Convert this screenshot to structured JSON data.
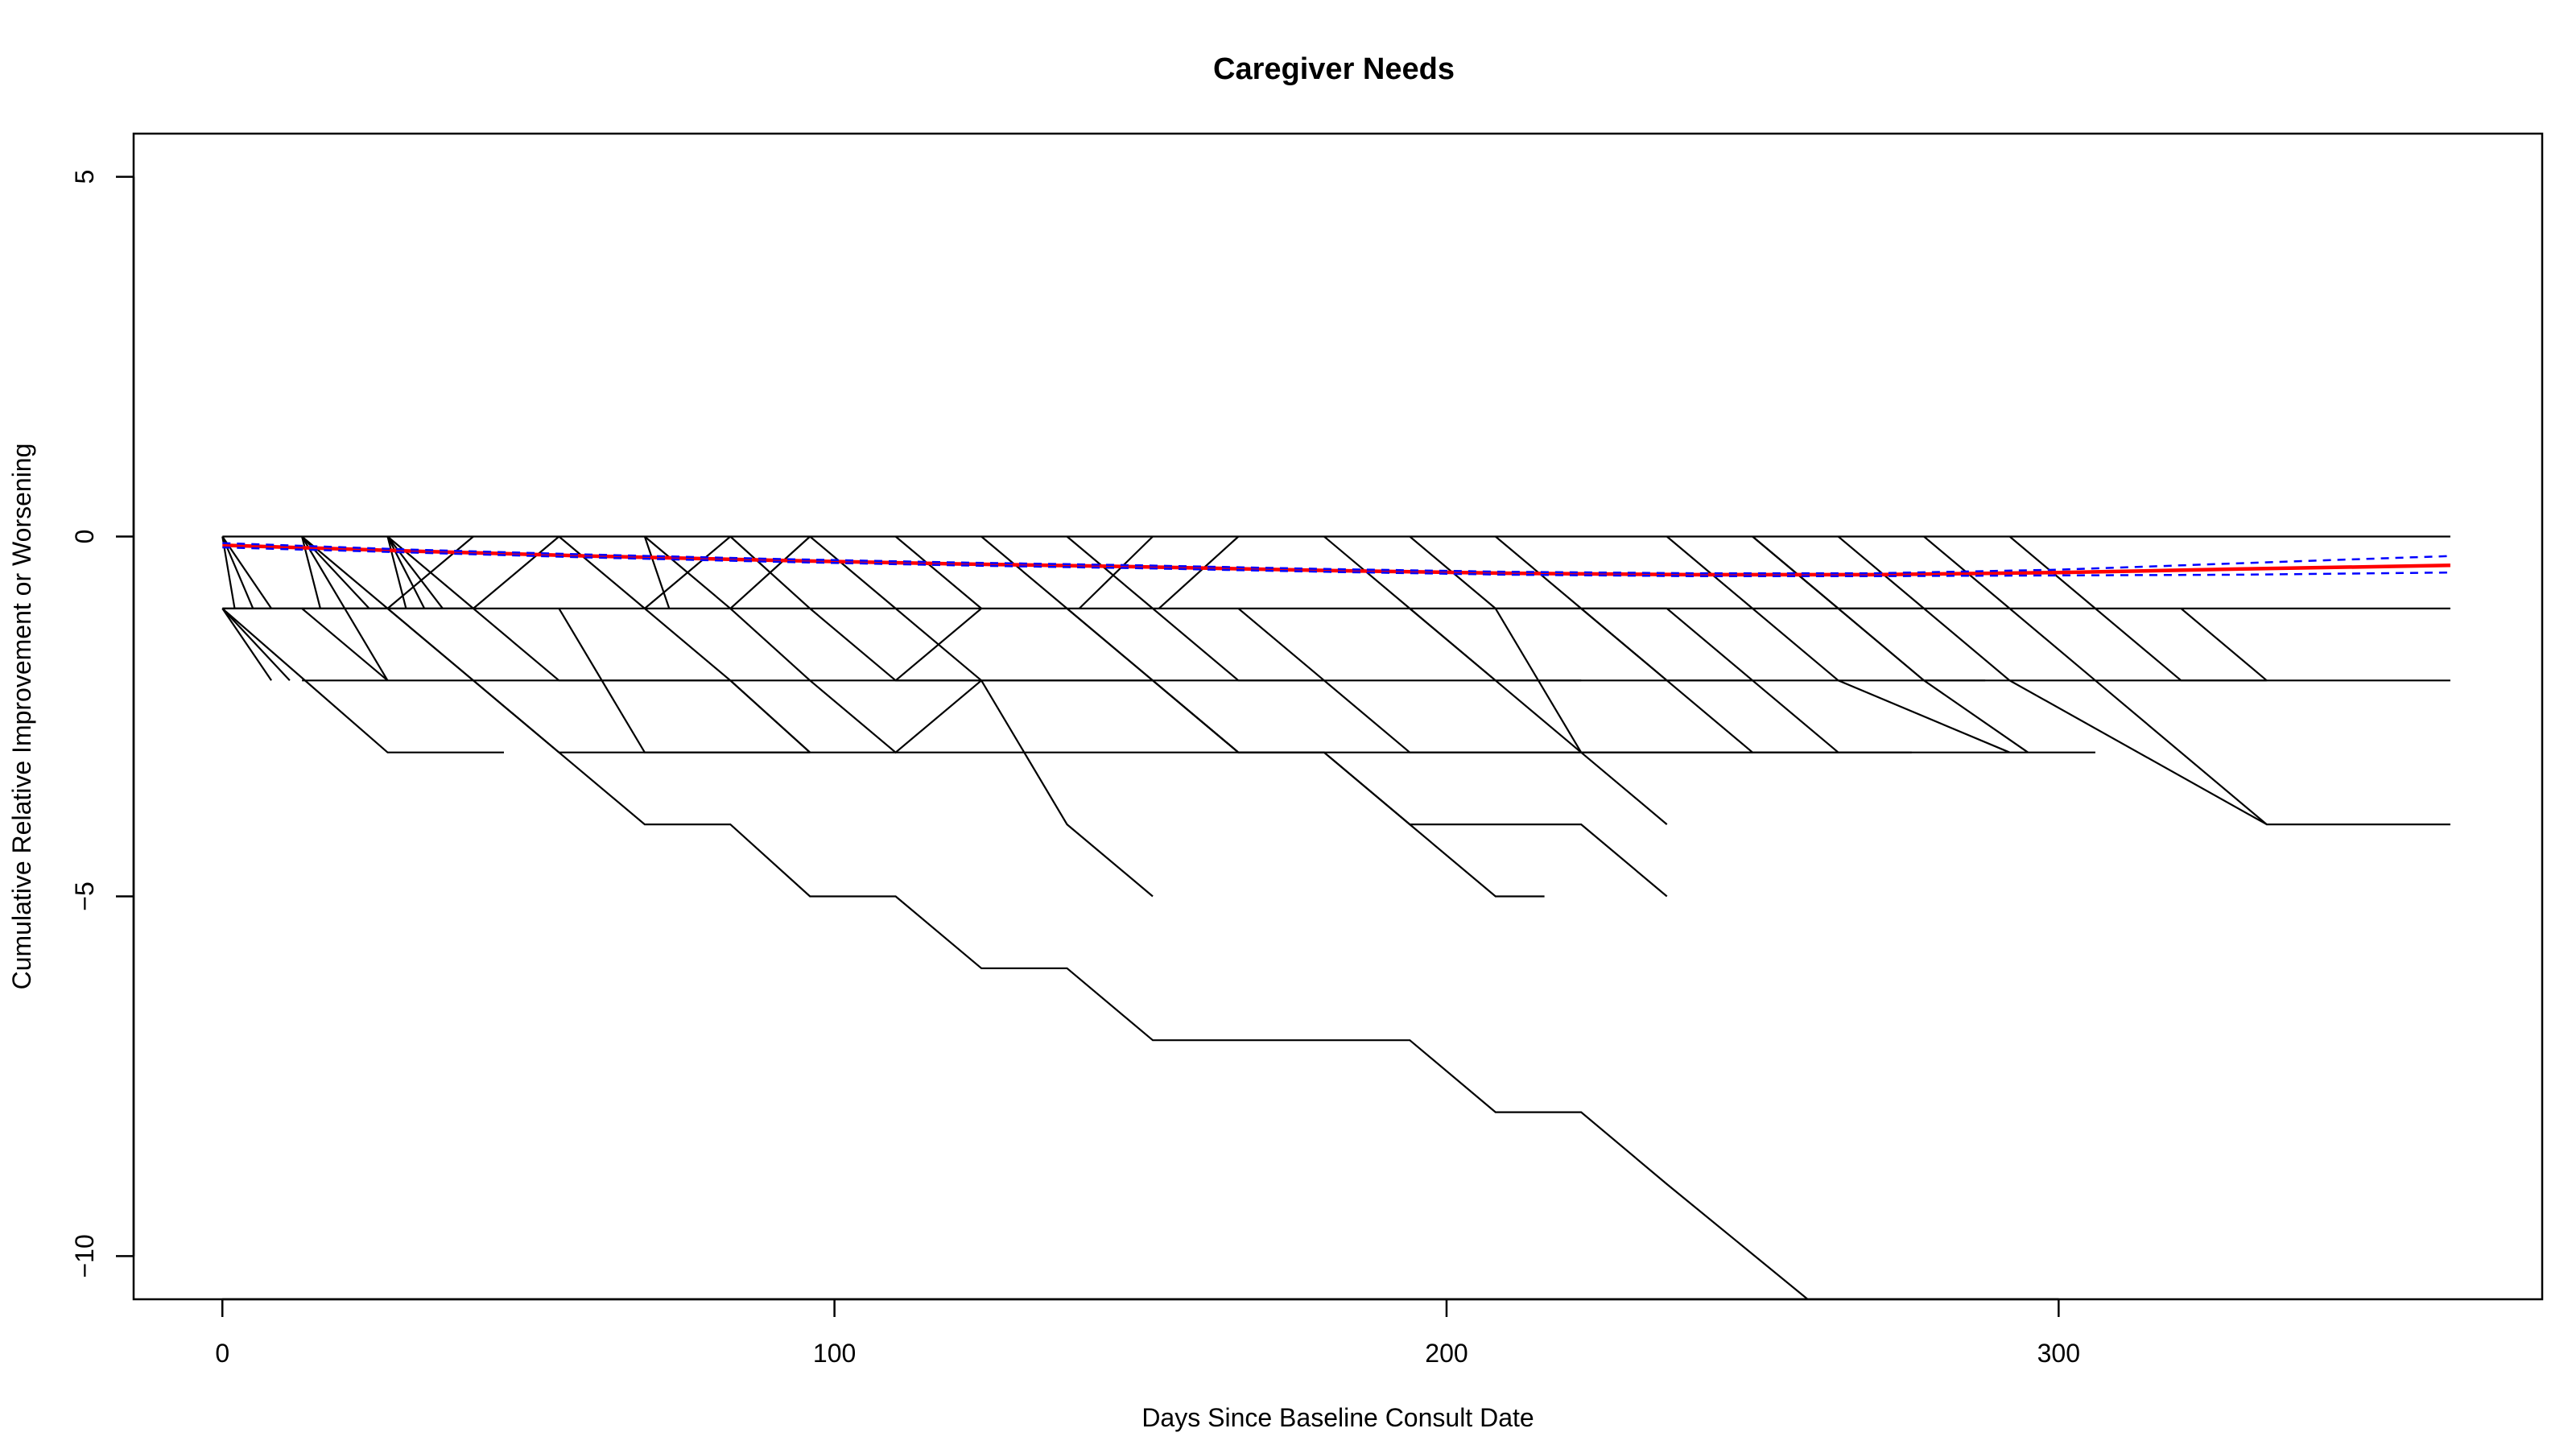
{
  "chart_data": {
    "type": "line",
    "title": "Caregiver Needs",
    "xlabel": "Days Since Baseline Consult Date",
    "ylabel": "Cumulative Relative Improvement or Worsening",
    "xlim": [
      -14.5,
      379
    ],
    "ylim": [
      -10.6,
      5.6
    ],
    "xticks": [
      0,
      100,
      200,
      300
    ],
    "yticks": [
      5,
      0,
      -5,
      -10
    ],
    "grid": false,
    "legend": "none",
    "colors": {
      "trajectory": "#000000",
      "fit": "#ff0000",
      "ci": "#0000ff"
    },
    "trajectories": [
      {
        "x": [
          0,
          364
        ],
        "y": [
          0,
          0
        ]
      },
      {
        "x": [
          0,
          364
        ],
        "y": [
          -1,
          -1
        ]
      },
      {
        "x": [
          13,
          364
        ],
        "y": [
          -2,
          -2
        ]
      },
      {
        "x": [
          0,
          27,
          46
        ],
        "y": [
          -1,
          -3,
          -3
        ]
      },
      {
        "x": [
          0,
          8
        ],
        "y": [
          -1,
          -2
        ]
      },
      {
        "x": [
          0,
          11
        ],
        "y": [
          -1,
          -2
        ]
      },
      {
        "x": [
          0,
          2,
          4
        ],
        "y": [
          0,
          -1,
          -1
        ]
      },
      {
        "x": [
          0,
          5
        ],
        "y": [
          0,
          -1
        ]
      },
      {
        "x": [
          0,
          8
        ],
        "y": [
          0,
          -1
        ]
      },
      {
        "x": [
          0,
          13,
          27
        ],
        "y": [
          -1,
          -1,
          -2
        ]
      },
      {
        "x": [
          13,
          16
        ],
        "y": [
          0,
          -1
        ]
      },
      {
        "x": [
          13,
          20,
          27
        ],
        "y": [
          0,
          -1,
          -2
        ]
      },
      {
        "x": [
          13,
          27
        ],
        "y": [
          0,
          -1
        ]
      },
      {
        "x": [
          13,
          24
        ],
        "y": [
          0,
          -1
        ]
      },
      {
        "x": [
          27,
          30
        ],
        "y": [
          0,
          -1
        ]
      },
      {
        "x": [
          27,
          33
        ],
        "y": [
          0,
          -1
        ]
      },
      {
        "x": [
          27,
          36
        ],
        "y": [
          0,
          -1
        ]
      },
      {
        "x": [
          27,
          41
        ],
        "y": [
          0,
          -1
        ]
      },
      {
        "x": [
          13,
          27,
          41,
          55,
          69,
          83,
          96,
          110,
          124,
          138,
          152,
          166,
          180,
          194,
          208,
          222,
          236,
          259
        ],
        "y": [
          -1,
          -1,
          -2,
          -3,
          -4,
          -4,
          -5,
          -5,
          -6,
          -6,
          -7,
          -7,
          -7,
          -7,
          -8,
          -8,
          -9,
          -10.6
        ]
      },
      {
        "x": [
          27,
          41,
          55,
          69,
          96
        ],
        "y": [
          -1,
          -2,
          -3,
          -3,
          -3
        ]
      },
      {
        "x": [
          41,
          55,
          69,
          83,
          96
        ],
        "y": [
          -1,
          -2,
          -2,
          -2,
          -3
        ]
      },
      {
        "x": [
          27,
          41
        ],
        "y": [
          -1,
          -1
        ]
      },
      {
        "x": [
          41,
          27
        ],
        "y": [
          0,
          -1
        ]
      },
      {
        "x": [
          55,
          41
        ],
        "y": [
          0,
          -1
        ]
      },
      {
        "x": [
          55,
          69,
          83,
          96
        ],
        "y": [
          0,
          -1,
          -2,
          -3
        ]
      },
      {
        "x": [
          55,
          69,
          276
        ],
        "y": [
          -1,
          -3,
          -3
        ]
      },
      {
        "x": [
          69,
          83,
          96,
          110,
          124
        ],
        "y": [
          0,
          -1,
          -2,
          -3,
          -2
        ]
      },
      {
        "x": [
          69,
          73
        ],
        "y": [
          0,
          -1
        ]
      },
      {
        "x": [
          83,
          69
        ],
        "y": [
          0,
          -1
        ]
      },
      {
        "x": [
          83,
          96,
          110,
          124,
          138,
          152
        ],
        "y": [
          0,
          -1,
          -2,
          -2,
          -4,
          -5
        ]
      },
      {
        "x": [
          96,
          83
        ],
        "y": [
          0,
          -1
        ]
      },
      {
        "x": [
          96,
          110,
          124,
          138,
          152,
          166,
          180
        ],
        "y": [
          0,
          -1,
          -2,
          -2,
          -2,
          -3,
          -3
        ]
      },
      {
        "x": [
          110,
          124
        ],
        "y": [
          0,
          -1
        ]
      },
      {
        "x": [
          124,
          138,
          152,
          166,
          180,
          194,
          208,
          216
        ],
        "y": [
          0,
          -1,
          -2,
          -3,
          -3,
          -4,
          -5,
          -5
        ]
      },
      {
        "x": [
          124,
          110
        ],
        "y": [
          -1,
          -2
        ]
      },
      {
        "x": [
          138,
          152
        ],
        "y": [
          0,
          -1
        ]
      },
      {
        "x": [
          138,
          152,
          166,
          180,
          194,
          208,
          222,
          236
        ],
        "y": [
          -1,
          -2,
          -3,
          -3,
          -4,
          -4,
          -4,
          -5
        ]
      },
      {
        "x": [
          152,
          140
        ],
        "y": [
          0,
          -1
        ]
      },
      {
        "x": [
          152,
          166,
          180
        ],
        "y": [
          -1,
          -2,
          -2
        ]
      },
      {
        "x": [
          166,
          153
        ],
        "y": [
          0,
          -1
        ]
      },
      {
        "x": [
          166,
          180,
          194,
          208,
          222,
          236
        ],
        "y": [
          -1,
          -2,
          -3,
          -3,
          -3,
          -4
        ]
      },
      {
        "x": [
          180,
          194,
          208,
          222
        ],
        "y": [
          0,
          -1,
          -2,
          -2
        ]
      },
      {
        "x": [
          194,
          208,
          222,
          236
        ],
        "y": [
          0,
          -1,
          -1,
          -1
        ]
      },
      {
        "x": [
          194,
          208,
          222,
          236,
          250
        ],
        "y": [
          -1,
          -2,
          -3,
          -3,
          -3
        ]
      },
      {
        "x": [
          208,
          222,
          236,
          250,
          264
        ],
        "y": [
          0,
          -1,
          -2,
          -3,
          -3
        ]
      },
      {
        "x": [
          222,
          236,
          250
        ],
        "y": [
          -1,
          -2,
          -2
        ]
      },
      {
        "x": [
          236,
          250,
          264
        ],
        "y": [
          0,
          -1,
          -2
        ]
      },
      {
        "x": [
          250,
          264,
          278
        ],
        "y": [
          0,
          -1,
          -1
        ]
      },
      {
        "x": [
          264,
          278,
          292,
          334
        ],
        "y": [
          0,
          -1,
          -2,
          -4
        ]
      },
      {
        "x": [
          236,
          250,
          264,
          278,
          292,
          306
        ],
        "y": [
          -1,
          -2,
          -3,
          -3,
          -3,
          -3
        ]
      },
      {
        "x": [
          278,
          292,
          306
        ],
        "y": [
          0,
          -1,
          -2
        ]
      },
      {
        "x": [
          292,
          306,
          320,
          334
        ],
        "y": [
          0,
          -1,
          -2,
          -2
        ]
      },
      {
        "x": [
          320,
          334
        ],
        "y": [
          -1,
          -2
        ]
      },
      {
        "x": [
          306,
          334,
          364
        ],
        "y": [
          -2,
          -4,
          -4
        ]
      },
      {
        "x": [
          264,
          278,
          288
        ],
        "y": [
          -1,
          -2,
          -2
        ]
      },
      {
        "x": [
          250,
          264,
          278,
          295
        ],
        "y": [
          0,
          -1,
          -2,
          -3
        ]
      },
      {
        "x": [
          208,
          222
        ],
        "y": [
          -1,
          -3
        ]
      },
      {
        "x": [
          264,
          292
        ],
        "y": [
          -2,
          -3
        ]
      }
    ],
    "fit": {
      "x": [
        0,
        30,
        60,
        90,
        120,
        150,
        180,
        210,
        240,
        270,
        300,
        330,
        364
      ],
      "y": [
        -0.12,
        -0.2,
        -0.27,
        -0.33,
        -0.38,
        -0.42,
        -0.47,
        -0.51,
        -0.53,
        -0.53,
        -0.5,
        -0.45,
        -0.4
      ]
    },
    "ci_lower": {
      "x": [
        0,
        30,
        60,
        90,
        120,
        150,
        180,
        210,
        240,
        270,
        300,
        330,
        364
      ],
      "y": [
        -0.15,
        -0.22,
        -0.29,
        -0.35,
        -0.4,
        -0.44,
        -0.49,
        -0.53,
        -0.55,
        -0.55,
        -0.54,
        -0.53,
        -0.5
      ]
    },
    "ci_upper": {
      "x": [
        0,
        30,
        60,
        90,
        120,
        150,
        180,
        210,
        240,
        270,
        300,
        330,
        364
      ],
      "y": [
        -0.09,
        -0.18,
        -0.25,
        -0.31,
        -0.36,
        -0.4,
        -0.45,
        -0.49,
        -0.51,
        -0.51,
        -0.46,
        -0.37,
        -0.27
      ]
    }
  }
}
